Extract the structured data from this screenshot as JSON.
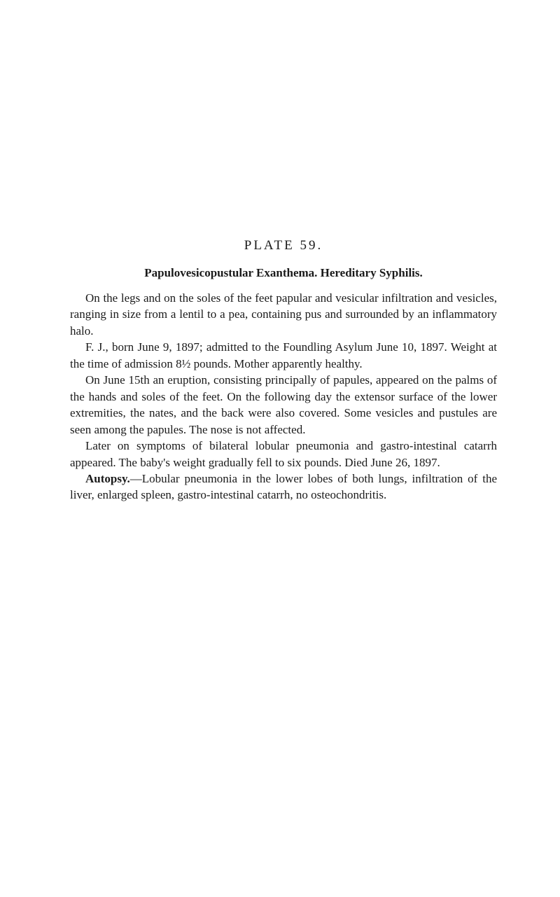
{
  "page": {
    "background_color": "#ffffff",
    "text_color": "#1a1a1a",
    "font_family": "Georgia, 'Times New Roman', serif"
  },
  "plate_title": "PLATE 59.",
  "subtitle": "Papulovesicopustular Exanthema.  Hereditary Syphilis.",
  "paragraphs": {
    "p1": "On the legs and on the soles of the feet papular and vesicular infiltration and vesicles, ranging in size from a lentil to a pea, containing pus and surrounded by an inflammatory halo.",
    "p2": "F. J., born June 9, 1897; admitted to the Foundling Asylum June 10, 1897. Weight at the time of admission 8½ pounds. Mother apparently healthy.",
    "p3": "On June 15th an eruption, consisting principally of papules, appeared on the palms of the hands and soles of the feet. On the following day the extensor surface of the lower extremities, the nates, and the back were also covered. Some vesicles and pustules are seen among the papules. The nose is not affected.",
    "p4": "Later on symptoms of bilateral lobular pneumonia and gas­tro-intestinal catarrh appeared. The baby's weight gradually fell to six pounds. Died June 26, 1897.",
    "p5_prefix": "Autopsy.",
    "p5_rest": "—Lobular pneumonia in the lower lobes of both lungs, infiltration of the liver, enlarged spleen, gastro-intestinal catarrh, no osteochondritis."
  },
  "typography": {
    "plate_title_fontsize": 19,
    "plate_title_letterspacing": 3,
    "subtitle_fontsize": 17,
    "body_fontsize": 17,
    "body_lineheight": 1.38,
    "indent": 22
  }
}
